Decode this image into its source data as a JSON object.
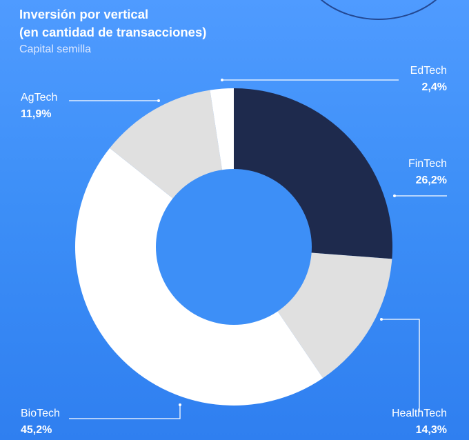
{
  "header": {
    "title_line1": "Inversión por vertical",
    "title_line2": "(en cantidad de transacciones)",
    "subtitle": "Capital semilla"
  },
  "colors": {
    "background": "#3d8ff7",
    "hole": "#3d8ff7",
    "fintech": "#1e2a4d",
    "healthtech": "#e0e0e0",
    "biotech": "#ffffff",
    "agtech": "#e0e0e0",
    "edtech": "#ffffff",
    "leader": "#ffffff"
  },
  "chart_data": {
    "type": "pie",
    "donut": true,
    "title": "Inversión por vertical (en cantidad de transacciones)",
    "subtitle": "Capital semilla",
    "unit": "%",
    "slices": [
      {
        "label": "FinTech",
        "value": 26.2,
        "value_label": "26,2%",
        "color": "#1e2a4d"
      },
      {
        "label": "HealthTech",
        "value": 14.3,
        "value_label": "14,3%",
        "color": "#e0e0e0"
      },
      {
        "label": "BioTech",
        "value": 45.2,
        "value_label": "45,2%",
        "color": "#ffffff"
      },
      {
        "label": "AgTech",
        "value": 11.9,
        "value_label": "11,9%",
        "color": "#e0e0e0"
      },
      {
        "label": "EdTech",
        "value": 2.4,
        "value_label": "2,4%",
        "color": "#ffffff"
      }
    ]
  }
}
